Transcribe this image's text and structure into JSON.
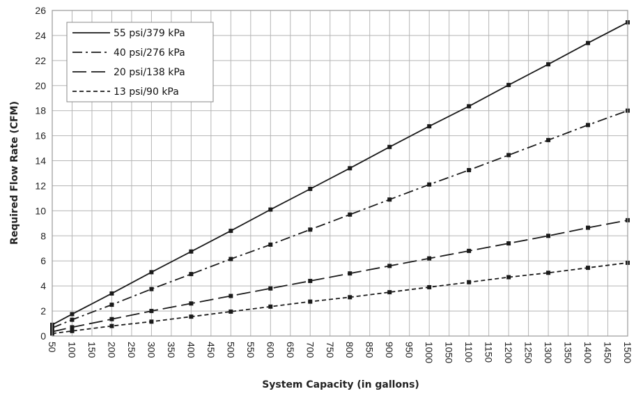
{
  "chart_data": {
    "type": "line",
    "title": "",
    "xlabel": "System Capacity (in gallons)",
    "ylabel": "Required Flow Rate (CFM)",
    "xlim": [
      50,
      1500
    ],
    "ylim": [
      0,
      26
    ],
    "x_ticks": [
      50,
      100,
      150,
      200,
      250,
      300,
      350,
      400,
      450,
      500,
      550,
      600,
      650,
      700,
      750,
      800,
      850,
      900,
      950,
      1000,
      1050,
      1100,
      1150,
      1200,
      1250,
      1300,
      1350,
      1400,
      1450,
      1500
    ],
    "y_ticks": [
      0,
      2,
      4,
      6,
      8,
      10,
      12,
      14,
      16,
      18,
      20,
      22,
      24,
      26
    ],
    "grid": true,
    "legend_position": "top-left",
    "x": [
      50,
      100,
      200,
      300,
      400,
      500,
      600,
      700,
      800,
      900,
      1000,
      1100,
      1200,
      1300,
      1400,
      1500
    ],
    "series": [
      {
        "name": "55 psi/379 kPa",
        "dash": "solid",
        "color": "#1a1a1a",
        "values": [
          0.9,
          1.75,
          3.4,
          5.1,
          6.75,
          8.4,
          10.1,
          11.75,
          13.4,
          15.1,
          16.75,
          18.35,
          20.05,
          21.7,
          23.4,
          25.05
        ]
      },
      {
        "name": "40 psi/276 kPa",
        "dash": "dash-dot",
        "color": "#1a1a1a",
        "values": [
          0.65,
          1.3,
          2.5,
          3.75,
          4.95,
          6.15,
          7.3,
          8.5,
          9.7,
          10.9,
          12.1,
          13.25,
          14.45,
          15.65,
          16.85,
          18.0
        ]
      },
      {
        "name": "20 psi/138 kPa",
        "dash": "long-dash",
        "color": "#1a1a1a",
        "values": [
          0.35,
          0.7,
          1.35,
          2.0,
          2.6,
          3.2,
          3.8,
          4.4,
          5.0,
          5.6,
          6.2,
          6.8,
          7.4,
          8.0,
          8.65,
          9.25
        ]
      },
      {
        "name": "13 psi/90 kPa",
        "dash": "short-dash",
        "color": "#1a1a1a",
        "values": [
          0.2,
          0.4,
          0.8,
          1.15,
          1.55,
          1.95,
          2.35,
          2.75,
          3.1,
          3.5,
          3.9,
          4.3,
          4.7,
          5.05,
          5.45,
          5.85
        ]
      }
    ]
  }
}
